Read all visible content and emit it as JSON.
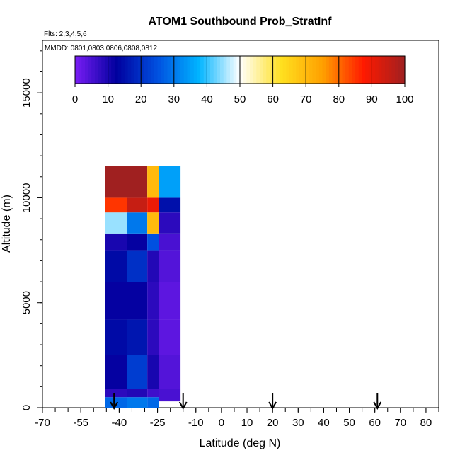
{
  "chart_data": {
    "type": "heatmap",
    "title": "ATOM1 Southbound Prob_StratInf",
    "subtitle_flights": "Flts: 2,3,4,5,6",
    "subtitle_dates": "MMDD: 0801,0803,0806,0808,0812",
    "xlabel": "Latitude (deg N)",
    "ylabel": "Altitude (m)",
    "xlim": [
      -70,
      85
    ],
    "ylim": [
      0,
      17500
    ],
    "x_tick_labels": [
      "-70",
      "-55",
      "-40",
      "-25",
      "-10",
      "0",
      "10",
      "20",
      "30",
      "40",
      "50",
      "60",
      "70",
      "80"
    ],
    "x_tick_values": [
      -70,
      -55,
      -40,
      -25,
      -10,
      0,
      10,
      20,
      30,
      40,
      50,
      60,
      70,
      80
    ],
    "y_tick_labels": [
      "0",
      "5000",
      "10000",
      "15000"
    ],
    "y_tick_values": [
      0,
      5000,
      10000,
      15000
    ],
    "colorbar": {
      "range": [
        0,
        100
      ],
      "tick_labels": [
        "0",
        "10",
        "20",
        "30",
        "40",
        "50",
        "60",
        "70",
        "80",
        "90",
        "100"
      ],
      "tick_values": [
        0,
        10,
        20,
        30,
        40,
        50,
        60,
        70,
        80,
        90,
        100
      ],
      "color_stops": [
        "#7a1df5",
        "#00009e",
        "#0050e0",
        "#00b4ff",
        "#ffffff",
        "#ffe020",
        "#ffa000",
        "#ff1a00",
        "#a02020"
      ]
    },
    "heatmap_columns": [
      {
        "lat_min": -45.5,
        "lat_max": -37,
        "alt_min": 0,
        "alt_max": 11500,
        "bands": [
          {
            "alt": [
              0,
              500
            ],
            "value": 28
          },
          {
            "alt": [
              500,
              900
            ],
            "value": 8
          },
          {
            "alt": [
              900,
              2500
            ],
            "value": 12
          },
          {
            "alt": [
              2500,
              4200
            ],
            "value": 14
          },
          {
            "alt": [
              4200,
              6000
            ],
            "value": 12
          },
          {
            "alt": [
              6000,
              7500
            ],
            "value": 14
          },
          {
            "alt": [
              7500,
              8300
            ],
            "value": 10
          },
          {
            "alt": [
              8300,
              9300
            ],
            "value": 45
          },
          {
            "alt": [
              9300,
              10000
            ],
            "value": 85
          },
          {
            "alt": [
              10000,
              11500
            ],
            "value": 100
          }
        ]
      },
      {
        "lat_min": -37,
        "lat_max": -29,
        "alt_min": 0,
        "alt_max": 11500,
        "bands": [
          {
            "alt": [
              0,
              500
            ],
            "value": 30
          },
          {
            "alt": [
              500,
              900
            ],
            "value": 9
          },
          {
            "alt": [
              900,
              2500
            ],
            "value": 22
          },
          {
            "alt": [
              2500,
              4200
            ],
            "value": 16
          },
          {
            "alt": [
              4200,
              6000
            ],
            "value": 12
          },
          {
            "alt": [
              6000,
              7500
            ],
            "value": 20
          },
          {
            "alt": [
              7500,
              8300
            ],
            "value": 12
          },
          {
            "alt": [
              8300,
              9300
            ],
            "value": 30
          },
          {
            "alt": [
              9300,
              10000
            ],
            "value": 95
          },
          {
            "alt": [
              10000,
              11500
            ],
            "value": 100
          }
        ]
      },
      {
        "lat_min": -29,
        "lat_max": -24.5,
        "alt_min": 0,
        "alt_max": 11500,
        "bands": [
          {
            "alt": [
              0,
              500
            ],
            "value": 28
          },
          {
            "alt": [
              500,
              900
            ],
            "value": 6
          },
          {
            "alt": [
              900,
              2500
            ],
            "value": 10
          },
          {
            "alt": [
              2500,
              4200
            ],
            "value": 8
          },
          {
            "alt": [
              4200,
              6000
            ],
            "value": 8
          },
          {
            "alt": [
              6000,
              7500
            ],
            "value": 9
          },
          {
            "alt": [
              7500,
              8300
            ],
            "value": 25
          },
          {
            "alt": [
              8300,
              9300
            ],
            "value": 70
          },
          {
            "alt": [
              9300,
              10000
            ],
            "value": 90
          },
          {
            "alt": [
              10000,
              11500
            ],
            "value": 70
          }
        ]
      },
      {
        "lat_min": -24.5,
        "lat_max": -16,
        "alt_min": 300,
        "alt_max": 11500,
        "bands": [
          {
            "alt": [
              300,
              900
            ],
            "value": 5
          },
          {
            "alt": [
              900,
              2500
            ],
            "value": 4
          },
          {
            "alt": [
              2500,
              4200
            ],
            "value": 3
          },
          {
            "alt": [
              4200,
              6000
            ],
            "value": 3
          },
          {
            "alt": [
              6000,
              7500
            ],
            "value": 4
          },
          {
            "alt": [
              7500,
              8300
            ],
            "value": 5
          },
          {
            "alt": [
              8300,
              9300
            ],
            "value": 8
          },
          {
            "alt": [
              9300,
              10000
            ],
            "value": 15
          },
          {
            "alt": [
              10000,
              11500
            ],
            "value": 35
          }
        ]
      }
    ],
    "arrows_at_latitude": [
      -42,
      -15,
      20,
      61
    ],
    "grid": false,
    "colorbar_placement": "top"
  }
}
